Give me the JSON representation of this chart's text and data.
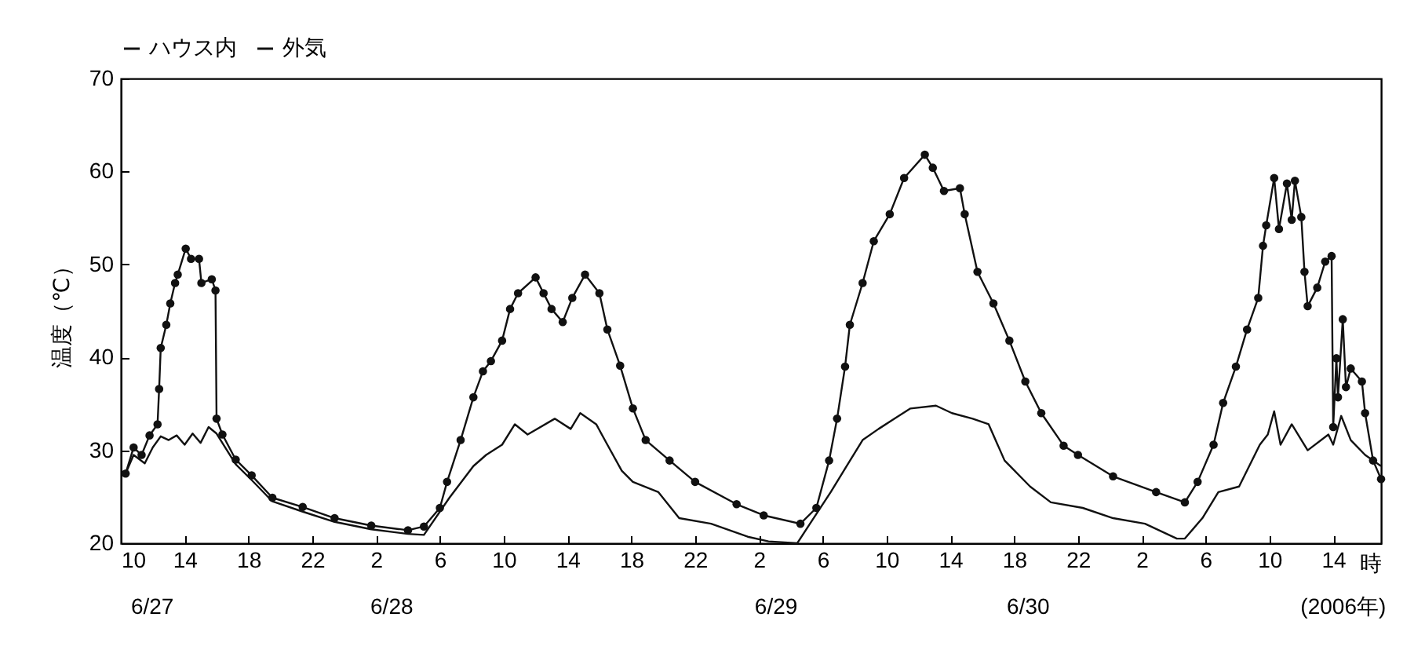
{
  "chart_data": {
    "type": "line",
    "ylabel": "温度（℃）",
    "xlabel": "時",
    "xlim": [
      "2006-06-27T10:00",
      "2006-06-30T17:00"
    ],
    "ylim": [
      20,
      70
    ],
    "yticks": [
      20,
      30,
      40,
      50,
      60,
      70
    ],
    "xticks": [
      {
        "value": "2006-06-27T10:00",
        "label": "10"
      },
      {
        "value": "2006-06-27T14:00",
        "label": "14"
      },
      {
        "value": "2006-06-27T18:00",
        "label": "18"
      },
      {
        "value": "2006-06-27T22:00",
        "label": "22"
      },
      {
        "value": "2006-06-28T02:00",
        "label": "2"
      },
      {
        "value": "2006-06-28T06:00",
        "label": "6"
      },
      {
        "value": "2006-06-28T10:00",
        "label": "10"
      },
      {
        "value": "2006-06-28T14:00",
        "label": "14"
      },
      {
        "value": "2006-06-28T18:00",
        "label": "18"
      },
      {
        "value": "2006-06-28T22:00",
        "label": "22"
      },
      {
        "value": "2006-06-29T02:00",
        "label": "2"
      },
      {
        "value": "2006-06-29T06:00",
        "label": "6"
      },
      {
        "value": "2006-06-29T10:00",
        "label": "10"
      },
      {
        "value": "2006-06-29T14:00",
        "label": "14"
      },
      {
        "value": "2006-06-29T18:00",
        "label": "18"
      },
      {
        "value": "2006-06-29T22:00",
        "label": "22"
      },
      {
        "value": "2006-06-30T02:00",
        "label": "2"
      },
      {
        "value": "2006-06-30T06:00",
        "label": "6"
      },
      {
        "value": "2006-06-30T10:00",
        "label": "10"
      },
      {
        "value": "2006-06-30T14:00",
        "label": "14"
      }
    ],
    "annotations": [
      "6/27",
      "6/28",
      "6/29",
      "6/30",
      "(2006年)"
    ],
    "grid": false,
    "legend": "top",
    "series": [
      {
        "name": "ハウス内",
        "color": "#111111",
        "marker": "circle",
        "x": [
          "2006-06-27T10:18",
          "2006-06-27T10:48",
          "2006-06-27T11:18",
          "2006-06-27T11:48",
          "2006-06-27T12:18",
          "2006-06-27T12:24",
          "2006-06-27T12:30",
          "2006-06-27T12:51",
          "2006-06-27T13:06",
          "2006-06-27T13:24",
          "2006-06-27T13:34",
          "2006-06-27T14:04",
          "2006-06-27T14:24",
          "2006-06-27T14:54",
          "2006-06-27T15:03",
          "2006-06-27T15:42",
          "2006-06-27T15:56",
          "2006-06-27T16:00",
          "2006-06-27T16:22",
          "2006-06-27T17:12",
          "2006-06-27T18:12",
          "2006-06-27T19:30",
          "2006-06-27T21:24",
          "2006-06-27T23:24",
          "2006-06-28T01:42",
          "2006-06-28T04:00",
          "2006-06-28T05:00",
          "2006-06-28T06:00",
          "2006-06-28T06:27",
          "2006-06-28T07:18",
          "2006-06-28T08:06",
          "2006-06-28T08:42",
          "2006-06-28T09:12",
          "2006-06-28T09:54",
          "2006-06-28T10:24",
          "2006-06-28T10:54",
          "2006-06-28T12:00",
          "2006-06-28T12:30",
          "2006-06-28T13:00",
          "2006-06-28T13:42",
          "2006-06-28T14:18",
          "2006-06-28T15:06",
          "2006-06-28T16:00",
          "2006-06-28T16:30",
          "2006-06-28T17:18",
          "2006-06-28T18:06",
          "2006-06-28T18:54",
          "2006-06-28T20:24",
          "2006-06-28T22:00",
          "2006-06-29T00:36",
          "2006-06-29T02:18",
          "2006-06-29T04:36",
          "2006-06-29T05:36",
          "2006-06-29T06:24",
          "2006-06-29T06:54",
          "2006-06-29T07:24",
          "2006-06-29T07:42",
          "2006-06-29T08:30",
          "2006-06-29T09:12",
          "2006-06-29T10:12",
          "2006-06-29T11:06",
          "2006-06-29T12:24",
          "2006-06-29T12:54",
          "2006-06-29T13:36",
          "2006-06-29T14:36",
          "2006-06-29T14:54",
          "2006-06-29T15:42",
          "2006-06-29T16:42",
          "2006-06-29T17:42",
          "2006-06-29T18:42",
          "2006-06-29T19:42",
          "2006-06-29T21:06",
          "2006-06-29T22:00",
          "2006-06-30T00:12",
          "2006-06-30T02:54",
          "2006-06-30T04:42",
          "2006-06-30T05:30",
          "2006-06-30T06:30",
          "2006-06-30T07:06",
          "2006-06-30T07:54",
          "2006-06-30T08:36",
          "2006-06-30T09:18",
          "2006-06-30T09:36",
          "2006-06-30T09:48",
          "2006-06-30T10:18",
          "2006-06-30T10:36",
          "2006-06-30T11:06",
          "2006-06-30T11:24",
          "2006-06-30T11:36",
          "2006-06-30T12:00",
          "2006-06-30T12:12",
          "2006-06-30T12:24",
          "2006-06-30T13:00",
          "2006-06-30T13:30",
          "2006-06-30T13:54",
          "2006-06-30T14:00",
          "2006-06-30T14:12",
          "2006-06-30T14:18",
          "2006-06-30T14:36",
          "2006-06-30T14:48",
          "2006-06-30T15:06",
          "2006-06-30T15:48",
          "2006-06-30T16:00",
          "2006-06-30T16:30",
          "2006-06-30T17:00"
        ],
        "values": [
          27.5,
          30.3,
          29.5,
          31.6,
          32.8,
          36.6,
          41,
          43.5,
          45.8,
          48,
          48.9,
          51.7,
          50.6,
          50.6,
          48,
          48.4,
          47.2,
          33.4,
          31.7,
          29,
          27.3,
          24.9,
          23.9,
          22.7,
          21.9,
          21.4,
          21.8,
          23.8,
          26.6,
          31.1,
          35.7,
          38.5,
          39.6,
          41.8,
          45.2,
          46.9,
          48.6,
          46.9,
          45.2,
          43.8,
          46.4,
          48.9,
          46.9,
          43,
          39.1,
          34.5,
          31.1,
          28.9,
          26.6,
          24.2,
          23,
          22.1,
          23.8,
          28.9,
          33.4,
          39,
          43.5,
          48,
          52.5,
          55.4,
          59.3,
          61.8,
          60.4,
          57.9,
          58.2,
          55.4,
          49.2,
          45.8,
          41.8,
          37.4,
          34,
          30.5,
          29.5,
          27.2,
          25.5,
          24.4,
          26.6,
          30.6,
          35.1,
          39,
          43,
          46.4,
          52,
          54.2,
          59.3,
          53.8,
          58.7,
          54.8,
          59,
          55.1,
          49.2,
          45.5,
          47.5,
          50.3,
          50.9,
          32.5,
          39.9,
          35.7,
          44.1,
          36.8,
          38.8,
          37.4,
          34,
          28.9,
          26.9
        ]
      },
      {
        "name": "外気",
        "color": "#111111",
        "marker": "none",
        "x": [
          "2006-06-27T10:18",
          "2006-06-27T10:48",
          "2006-06-27T11:30",
          "2006-06-27T12:00",
          "2006-06-27T12:30",
          "2006-06-27T13:00",
          "2006-06-27T13:30",
          "2006-06-27T14:00",
          "2006-06-27T14:30",
          "2006-06-27T15:00",
          "2006-06-27T15:30",
          "2006-06-27T16:00",
          "2006-06-27T17:12",
          "2006-06-27T18:12",
          "2006-06-27T19:30",
          "2006-06-27T21:24",
          "2006-06-27T23:24",
          "2006-06-28T01:42",
          "2006-06-28T04:00",
          "2006-06-28T05:00",
          "2006-06-28T06:36",
          "2006-06-28T08:06",
          "2006-06-28T08:54",
          "2006-06-28T09:54",
          "2006-06-28T10:42",
          "2006-06-28T11:30",
          "2006-06-28T13:12",
          "2006-06-28T14:12",
          "2006-06-28T14:48",
          "2006-06-28T15:48",
          "2006-06-28T16:30",
          "2006-06-28T17:24",
          "2006-06-28T18:06",
          "2006-06-28T19:42",
          "2006-06-28T21:00",
          "2006-06-28T23:00",
          "2006-06-29T01:18",
          "2006-06-29T02:36",
          "2006-06-29T04:24",
          "2006-06-29T05:12",
          "2006-06-29T06:30",
          "2006-06-29T07:30",
          "2006-06-29T08:30",
          "2006-06-29T09:30",
          "2006-06-29T10:30",
          "2006-06-29T11:30",
          "2006-06-29T13:06",
          "2006-06-29T14:06",
          "2006-06-29T15:24",
          "2006-06-29T16:24",
          "2006-06-29T17:24",
          "2006-06-29T19:00",
          "2006-06-29T20:18",
          "2006-06-29T22:18",
          "2006-06-30T00:12",
          "2006-06-30T02:12",
          "2006-06-30T04:12",
          "2006-06-30T04:42",
          "2006-06-30T05:48",
          "2006-06-30T06:48",
          "2006-06-30T08:06",
          "2006-06-30T09:24",
          "2006-06-30T09:54",
          "2006-06-30T10:18",
          "2006-06-30T10:42",
          "2006-06-30T11:24",
          "2006-06-30T12:24",
          "2006-06-30T13:42",
          "2006-06-30T14:00",
          "2006-06-30T14:30",
          "2006-06-30T15:06",
          "2006-06-30T16:00",
          "2006-06-30T17:00"
        ],
        "values": [
          27.5,
          29.5,
          28.6,
          30.3,
          31.5,
          31.1,
          31.6,
          30.6,
          31.8,
          30.8,
          32.5,
          31.8,
          28.5,
          26.8,
          24.5,
          23.4,
          22.3,
          21.5,
          21,
          20.9,
          24.9,
          28.3,
          29.5,
          30.6,
          32.8,
          31.7,
          33.4,
          32.3,
          34,
          32.8,
          30.6,
          27.8,
          26.6,
          25.5,
          22.7,
          22.1,
          20.7,
          20.2,
          20,
          22.1,
          25.5,
          28.3,
          31.1,
          32.3,
          33.4,
          34.5,
          34.8,
          34,
          33.4,
          32.8,
          28.9,
          26.1,
          24.4,
          23.8,
          22.7,
          22.1,
          20.5,
          20.5,
          22.7,
          25.5,
          26.1,
          30.6,
          31.7,
          34.2,
          30.6,
          32.8,
          30,
          31.7,
          30.6,
          33.7,
          31.1,
          29.5,
          28.3
        ]
      }
    ]
  }
}
